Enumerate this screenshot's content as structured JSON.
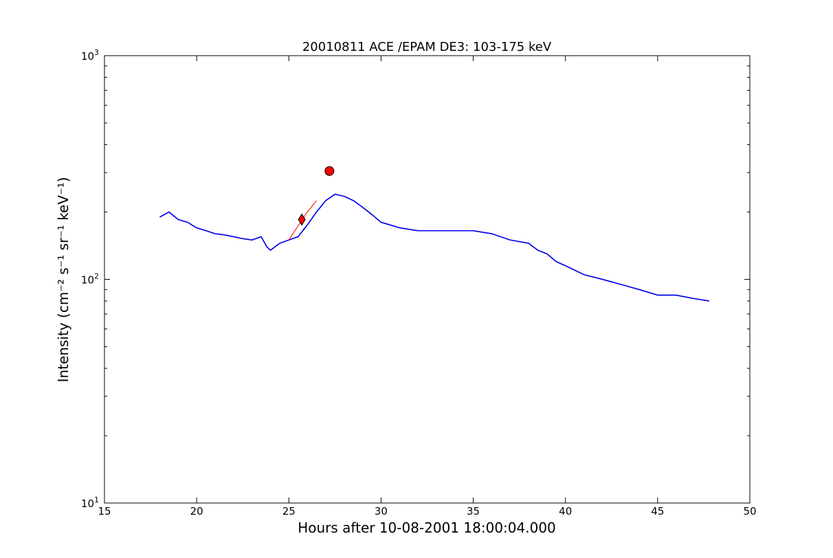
{
  "chart_data": {
    "type": "line",
    "title": "20010811 ACE /EPAM DE3: 103-175 keV",
    "xlabel": "Hours after 10-08-2001 18:00:04.000",
    "ylabel": "Intensity (cm⁻² s⁻¹ sr⁻¹ keV⁻¹)",
    "xlim": [
      15,
      50
    ],
    "ylim": [
      10,
      1000
    ],
    "yscale": "log",
    "x_ticks": [
      15,
      20,
      25,
      30,
      35,
      40,
      45,
      50
    ],
    "x_tick_labels": [
      "15",
      "20",
      "25",
      "30",
      "35",
      "40",
      "45",
      "50"
    ],
    "y_ticks": [
      10,
      100,
      1000
    ],
    "y_tick_labels": [
      "10",
      "10",
      "10"
    ],
    "y_tick_exponents": [
      "1",
      "2",
      "3"
    ],
    "grid": false,
    "series": [
      {
        "color": "#000000",
        "x": [
          18.0,
          18.5,
          19.0,
          19.5,
          20.0,
          20.5,
          21.0,
          21.5,
          22.0,
          22.5,
          23.0,
          23.5,
          23.8,
          24.0,
          24.5,
          25.0,
          25.5,
          26.0,
          26.5,
          27.0,
          27.5,
          28.0,
          28.5,
          29.0,
          29.5,
          30.0,
          31.0,
          32.0,
          33.0,
          34.0,
          35.0,
          36.0,
          37.0,
          38.0,
          38.5,
          39.0,
          39.5,
          40.0,
          41.0,
          42.0,
          43.0,
          44.0,
          45.0,
          46.0,
          47.0,
          47.8
        ],
        "y": [
          190,
          200,
          185,
          180,
          170,
          165,
          160,
          158,
          155,
          152,
          150,
          155,
          140,
          135,
          145,
          150,
          155,
          175,
          200,
          225,
          240,
          235,
          225,
          210,
          195,
          180,
          170,
          165,
          165,
          165,
          165,
          160,
          150,
          145,
          135,
          130,
          120,
          115,
          105,
          100,
          95,
          90,
          85,
          85,
          82,
          80
        ]
      },
      {
        "color": "#0000ff",
        "x": [
          18.0,
          18.5,
          19.0,
          19.5,
          20.0,
          20.5,
          21.0,
          21.5,
          22.0,
          22.5,
          23.0,
          23.5,
          23.8,
          24.0,
          24.5,
          25.0,
          25.5,
          26.0,
          26.5,
          27.0,
          27.5,
          28.0,
          28.5,
          29.0,
          29.5,
          30.0,
          31.0,
          32.0,
          33.0,
          34.0,
          35.0,
          36.0,
          37.0,
          38.0,
          38.5,
          39.0,
          39.5,
          40.0,
          41.0,
          42.0,
          43.0,
          44.0,
          45.0,
          46.0,
          47.0,
          47.8
        ],
        "y": [
          190,
          200,
          185,
          180,
          170,
          165,
          160,
          158,
          155,
          152,
          150,
          155,
          140,
          135,
          145,
          150,
          155,
          175,
          200,
          225,
          240,
          235,
          225,
          210,
          195,
          180,
          170,
          165,
          165,
          165,
          165,
          160,
          150,
          145,
          135,
          130,
          120,
          115,
          105,
          100,
          95,
          90,
          85,
          85,
          82,
          80
        ]
      },
      {
        "color": "#ff0000",
        "x": [
          25.0,
          26.0,
          26.5
        ],
        "y": [
          150,
          200,
          225
        ]
      }
    ],
    "markers": [
      {
        "shape": "diamond",
        "color": "#ff0000",
        "x": 25.7,
        "y": 185
      },
      {
        "shape": "circle",
        "color": "#ff0000",
        "x": 27.2,
        "y": 305
      }
    ]
  }
}
